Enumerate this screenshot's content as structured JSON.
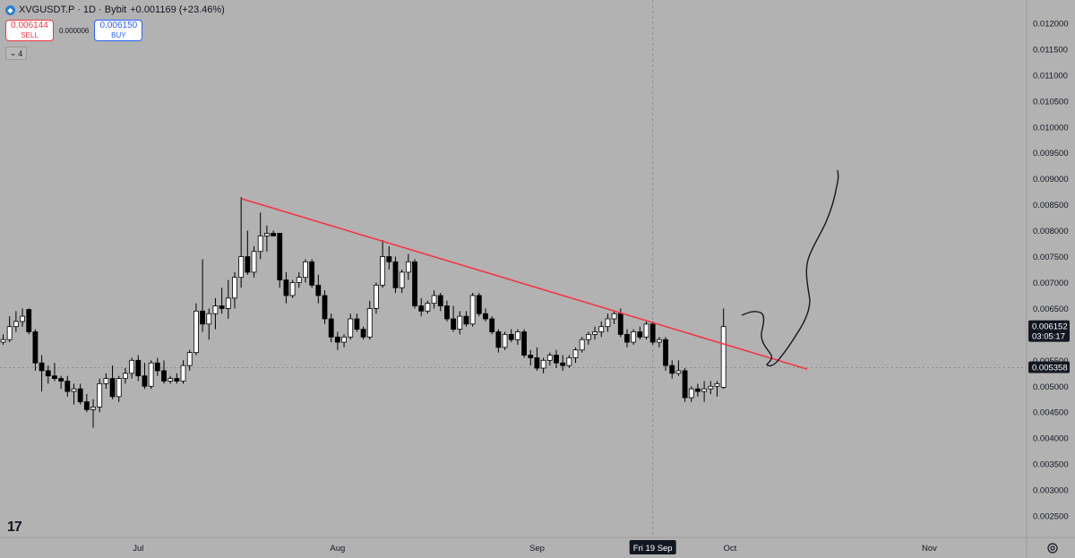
{
  "header": {
    "symbol_line": "XVGUSDT.P · 1D · Bybit",
    "change": "+0.001169 (+23.46%)",
    "sell_price": "0.006144",
    "sell_label": "SELL",
    "spread": "0.000006",
    "buy_price": "0.006150",
    "buy_label": "BUY",
    "indicators_count": "4"
  },
  "colors": {
    "background": "#b2b2b2",
    "trendline": "#f23645",
    "candle_up": "#ffffff",
    "candle_down": "#000000"
  },
  "chart_data": {
    "type": "candlestick",
    "ylim": [
      0.0024,
      0.0122
    ],
    "y_ticks": [
      "0.012000",
      "0.011500",
      "0.011000",
      "0.010500",
      "0.010000",
      "0.009500",
      "0.009000",
      "0.008500",
      "0.008000",
      "0.007500",
      "0.007000",
      "0.006500",
      "0.006000",
      "0.005500",
      "0.005000",
      "0.004500",
      "0.004000",
      "0.003500",
      "0.003000",
      "0.002500"
    ],
    "x_ticks": [
      {
        "label": "Jul",
        "day": 21
      },
      {
        "label": "Aug",
        "day": 52
      },
      {
        "label": "Sep",
        "day": 83
      },
      {
        "label": "Oct",
        "day": 113
      },
      {
        "label": "Nov",
        "day": 144
      }
    ],
    "crosshair": {
      "x_label": "Fri 19 Sep",
      "day": 101
    },
    "price_labels": [
      {
        "price": 0.006152,
        "text": "0.006152",
        "sub": "03:05:17"
      },
      {
        "price": 0.005358,
        "text": "0.005358",
        "sub": ""
      }
    ],
    "trendline": {
      "from": {
        "day": 37,
        "price": 0.00862
      },
      "to": {
        "day": 125,
        "price": 0.00533
      }
    },
    "candles": [
      {
        "o": 0.00585,
        "h": 0.006,
        "l": 0.0058,
        "c": 0.0059
      },
      {
        "o": 0.0059,
        "h": 0.00635,
        "l": 0.00585,
        "c": 0.00615
      },
      {
        "o": 0.00615,
        "h": 0.00645,
        "l": 0.00605,
        "c": 0.00625
      },
      {
        "o": 0.00625,
        "h": 0.0065,
        "l": 0.00615,
        "c": 0.00635
      },
      {
        "o": 0.00648,
        "h": 0.0065,
        "l": 0.006,
        "c": 0.00605
      },
      {
        "o": 0.00605,
        "h": 0.0061,
        "l": 0.0053,
        "c": 0.00545
      },
      {
        "o": 0.00545,
        "h": 0.0056,
        "l": 0.0049,
        "c": 0.0053
      },
      {
        "o": 0.0053,
        "h": 0.0054,
        "l": 0.00505,
        "c": 0.0052
      },
      {
        "o": 0.0052,
        "h": 0.00545,
        "l": 0.0051,
        "c": 0.00515
      },
      {
        "o": 0.00515,
        "h": 0.0052,
        "l": 0.00495,
        "c": 0.0051
      },
      {
        "o": 0.0051,
        "h": 0.0052,
        "l": 0.0048,
        "c": 0.0049
      },
      {
        "o": 0.0049,
        "h": 0.00505,
        "l": 0.00465,
        "c": 0.00495
      },
      {
        "o": 0.00495,
        "h": 0.00505,
        "l": 0.00465,
        "c": 0.0047
      },
      {
        "o": 0.0047,
        "h": 0.00485,
        "l": 0.0045,
        "c": 0.00455
      },
      {
        "o": 0.00455,
        "h": 0.00475,
        "l": 0.0042,
        "c": 0.0046
      },
      {
        "o": 0.0046,
        "h": 0.00515,
        "l": 0.0045,
        "c": 0.00505
      },
      {
        "o": 0.00505,
        "h": 0.00525,
        "l": 0.00495,
        "c": 0.00515
      },
      {
        "o": 0.00515,
        "h": 0.0054,
        "l": 0.00475,
        "c": 0.0048
      },
      {
        "o": 0.0048,
        "h": 0.0052,
        "l": 0.0047,
        "c": 0.00515
      },
      {
        "o": 0.00515,
        "h": 0.00535,
        "l": 0.00505,
        "c": 0.00525
      },
      {
        "o": 0.00525,
        "h": 0.00555,
        "l": 0.00515,
        "c": 0.0055
      },
      {
        "o": 0.0055,
        "h": 0.0056,
        "l": 0.0051,
        "c": 0.0052
      },
      {
        "o": 0.0052,
        "h": 0.00545,
        "l": 0.00495,
        "c": 0.005
      },
      {
        "o": 0.005,
        "h": 0.0055,
        "l": 0.00495,
        "c": 0.00545
      },
      {
        "o": 0.00545,
        "h": 0.00555,
        "l": 0.0052,
        "c": 0.0053
      },
      {
        "o": 0.0053,
        "h": 0.0055,
        "l": 0.00505,
        "c": 0.0051
      },
      {
        "o": 0.0051,
        "h": 0.0052,
        "l": 0.00505,
        "c": 0.00515
      },
      {
        "o": 0.00515,
        "h": 0.00525,
        "l": 0.00505,
        "c": 0.0051
      },
      {
        "o": 0.0051,
        "h": 0.0055,
        "l": 0.00505,
        "c": 0.0054
      },
      {
        "o": 0.0054,
        "h": 0.0057,
        "l": 0.0053,
        "c": 0.00565
      },
      {
        "o": 0.00565,
        "h": 0.0066,
        "l": 0.0056,
        "c": 0.00645
      },
      {
        "o": 0.00645,
        "h": 0.00745,
        "l": 0.00605,
        "c": 0.0062
      },
      {
        "o": 0.0062,
        "h": 0.0065,
        "l": 0.0059,
        "c": 0.0064
      },
      {
        "o": 0.0064,
        "h": 0.0067,
        "l": 0.0061,
        "c": 0.00655
      },
      {
        "o": 0.00655,
        "h": 0.0069,
        "l": 0.0064,
        "c": 0.0065
      },
      {
        "o": 0.0065,
        "h": 0.00705,
        "l": 0.0063,
        "c": 0.0067
      },
      {
        "o": 0.0067,
        "h": 0.0072,
        "l": 0.0065,
        "c": 0.0071
      },
      {
        "o": 0.0071,
        "h": 0.00865,
        "l": 0.0069,
        "c": 0.0075
      },
      {
        "o": 0.0075,
        "h": 0.008,
        "l": 0.00715,
        "c": 0.0072
      },
      {
        "o": 0.0072,
        "h": 0.0077,
        "l": 0.0071,
        "c": 0.0076
      },
      {
        "o": 0.0076,
        "h": 0.00835,
        "l": 0.00745,
        "c": 0.0079
      },
      {
        "o": 0.0079,
        "h": 0.0081,
        "l": 0.0076,
        "c": 0.00795
      },
      {
        "o": 0.00795,
        "h": 0.008,
        "l": 0.0079,
        "c": 0.0079
      },
      {
        "o": 0.00795,
        "h": 0.00795,
        "l": 0.0069,
        "c": 0.00705
      },
      {
        "o": 0.00705,
        "h": 0.0072,
        "l": 0.0066,
        "c": 0.00675
      },
      {
        "o": 0.00675,
        "h": 0.00705,
        "l": 0.0067,
        "c": 0.007
      },
      {
        "o": 0.007,
        "h": 0.0072,
        "l": 0.0069,
        "c": 0.0071
      },
      {
        "o": 0.0071,
        "h": 0.00745,
        "l": 0.007,
        "c": 0.0074
      },
      {
        "o": 0.0074,
        "h": 0.00745,
        "l": 0.0069,
        "c": 0.00695
      },
      {
        "o": 0.00695,
        "h": 0.00715,
        "l": 0.0066,
        "c": 0.00675
      },
      {
        "o": 0.00675,
        "h": 0.00685,
        "l": 0.0062,
        "c": 0.0063
      },
      {
        "o": 0.0063,
        "h": 0.0064,
        "l": 0.00585,
        "c": 0.00595
      },
      {
        "o": 0.00595,
        "h": 0.00605,
        "l": 0.0057,
        "c": 0.00585
      },
      {
        "o": 0.00585,
        "h": 0.006,
        "l": 0.00575,
        "c": 0.00595
      },
      {
        "o": 0.00595,
        "h": 0.0064,
        "l": 0.0059,
        "c": 0.0063
      },
      {
        "o": 0.0063,
        "h": 0.0064,
        "l": 0.00605,
        "c": 0.0061
      },
      {
        "o": 0.0061,
        "h": 0.00615,
        "l": 0.0059,
        "c": 0.00595
      },
      {
        "o": 0.00595,
        "h": 0.00665,
        "l": 0.0059,
        "c": 0.0065
      },
      {
        "o": 0.0065,
        "h": 0.007,
        "l": 0.0064,
        "c": 0.00695
      },
      {
        "o": 0.00695,
        "h": 0.00782,
        "l": 0.0069,
        "c": 0.0075
      },
      {
        "o": 0.0075,
        "h": 0.0077,
        "l": 0.00725,
        "c": 0.0074
      },
      {
        "o": 0.0074,
        "h": 0.0075,
        "l": 0.0068,
        "c": 0.0069
      },
      {
        "o": 0.0069,
        "h": 0.00725,
        "l": 0.0068,
        "c": 0.0072
      },
      {
        "o": 0.0072,
        "h": 0.00755,
        "l": 0.00705,
        "c": 0.0074
      },
      {
        "o": 0.0074,
        "h": 0.00745,
        "l": 0.0065,
        "c": 0.00655
      },
      {
        "o": 0.00655,
        "h": 0.0067,
        "l": 0.00635,
        "c": 0.00645
      },
      {
        "o": 0.00645,
        "h": 0.00665,
        "l": 0.0064,
        "c": 0.0066
      },
      {
        "o": 0.0066,
        "h": 0.00685,
        "l": 0.0065,
        "c": 0.00675
      },
      {
        "o": 0.00675,
        "h": 0.0068,
        "l": 0.00645,
        "c": 0.00655
      },
      {
        "o": 0.00655,
        "h": 0.00665,
        "l": 0.00625,
        "c": 0.0063
      },
      {
        "o": 0.0063,
        "h": 0.00655,
        "l": 0.00605,
        "c": 0.0061
      },
      {
        "o": 0.0061,
        "h": 0.00645,
        "l": 0.006,
        "c": 0.00635
      },
      {
        "o": 0.00635,
        "h": 0.00645,
        "l": 0.00615,
        "c": 0.0062
      },
      {
        "o": 0.0062,
        "h": 0.0068,
        "l": 0.00615,
        "c": 0.00675
      },
      {
        "o": 0.00675,
        "h": 0.0068,
        "l": 0.00635,
        "c": 0.0064
      },
      {
        "o": 0.0064,
        "h": 0.0065,
        "l": 0.00625,
        "c": 0.0063
      },
      {
        "o": 0.0063,
        "h": 0.00635,
        "l": 0.006,
        "c": 0.00605
      },
      {
        "o": 0.00605,
        "h": 0.0061,
        "l": 0.00565,
        "c": 0.00575
      },
      {
        "o": 0.00575,
        "h": 0.00605,
        "l": 0.0057,
        "c": 0.006
      },
      {
        "o": 0.006,
        "h": 0.0061,
        "l": 0.00585,
        "c": 0.0059
      },
      {
        "o": 0.0059,
        "h": 0.0061,
        "l": 0.0058,
        "c": 0.00605
      },
      {
        "o": 0.00605,
        "h": 0.0061,
        "l": 0.00555,
        "c": 0.0056
      },
      {
        "o": 0.0056,
        "h": 0.0057,
        "l": 0.0054,
        "c": 0.00555
      },
      {
        "o": 0.00555,
        "h": 0.00575,
        "l": 0.0053,
        "c": 0.00535
      },
      {
        "o": 0.00535,
        "h": 0.00555,
        "l": 0.00525,
        "c": 0.0055
      },
      {
        "o": 0.0055,
        "h": 0.00565,
        "l": 0.0054,
        "c": 0.0056
      },
      {
        "o": 0.0056,
        "h": 0.0057,
        "l": 0.00535,
        "c": 0.00545
      },
      {
        "o": 0.00545,
        "h": 0.0056,
        "l": 0.0053,
        "c": 0.0054
      },
      {
        "o": 0.0054,
        "h": 0.0056,
        "l": 0.00535,
        "c": 0.00555
      },
      {
        "o": 0.00555,
        "h": 0.00575,
        "l": 0.00545,
        "c": 0.0057
      },
      {
        "o": 0.0057,
        "h": 0.00595,
        "l": 0.00565,
        "c": 0.0059
      },
      {
        "o": 0.0059,
        "h": 0.00605,
        "l": 0.0058,
        "c": 0.006
      },
      {
        "o": 0.006,
        "h": 0.00615,
        "l": 0.0059,
        "c": 0.00605
      },
      {
        "o": 0.00605,
        "h": 0.00625,
        "l": 0.00595,
        "c": 0.00615
      },
      {
        "o": 0.00615,
        "h": 0.0064,
        "l": 0.00605,
        "c": 0.0063
      },
      {
        "o": 0.0063,
        "h": 0.00645,
        "l": 0.0062,
        "c": 0.0064
      },
      {
        "o": 0.0064,
        "h": 0.0065,
        "l": 0.00595,
        "c": 0.006
      },
      {
        "o": 0.006,
        "h": 0.0061,
        "l": 0.00575,
        "c": 0.00585
      },
      {
        "o": 0.00585,
        "h": 0.0061,
        "l": 0.0058,
        "c": 0.00605
      },
      {
        "o": 0.00605,
        "h": 0.00615,
        "l": 0.0059,
        "c": 0.00595
      },
      {
        "o": 0.00595,
        "h": 0.00625,
        "l": 0.0059,
        "c": 0.0062
      },
      {
        "o": 0.0062,
        "h": 0.00625,
        "l": 0.0058,
        "c": 0.00585
      },
      {
        "o": 0.00585,
        "h": 0.00595,
        "l": 0.00575,
        "c": 0.0059
      },
      {
        "o": 0.0059,
        "h": 0.00595,
        "l": 0.0053,
        "c": 0.0054
      },
      {
        "o": 0.0054,
        "h": 0.0055,
        "l": 0.00515,
        "c": 0.00525
      },
      {
        "o": 0.00525,
        "h": 0.0055,
        "l": 0.0052,
        "c": 0.0053
      },
      {
        "o": 0.0053,
        "h": 0.00535,
        "l": 0.0047,
        "c": 0.00478
      },
      {
        "o": 0.00478,
        "h": 0.005,
        "l": 0.0047,
        "c": 0.00495
      },
      {
        "o": 0.00495,
        "h": 0.00505,
        "l": 0.0048,
        "c": 0.0049
      },
      {
        "o": 0.0049,
        "h": 0.0051,
        "l": 0.0047,
        "c": 0.00495
      },
      {
        "o": 0.00495,
        "h": 0.0051,
        "l": 0.00485,
        "c": 0.005
      },
      {
        "o": 0.005,
        "h": 0.0051,
        "l": 0.0048,
        "c": 0.00505
      },
      {
        "o": 0.00498,
        "h": 0.0065,
        "l": 0.00495,
        "c": 0.00615
      }
    ],
    "drawn_path_label": "hand-drawn projection"
  }
}
